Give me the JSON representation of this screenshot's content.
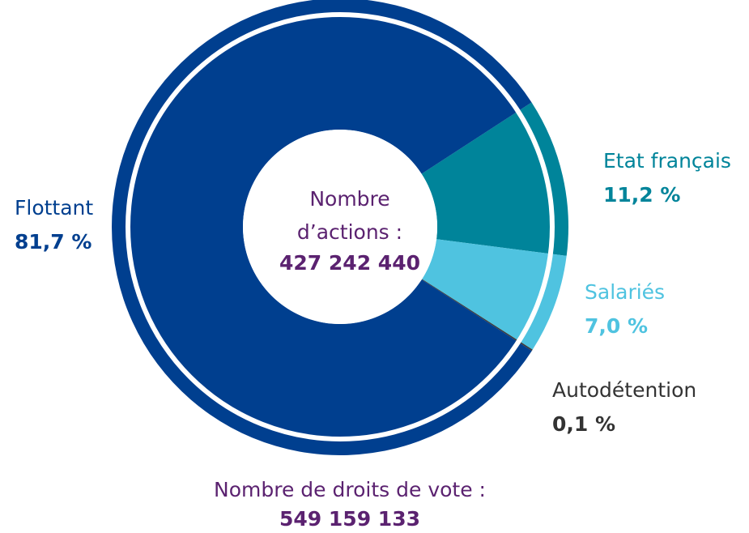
{
  "chart_data": {
    "type": "pie",
    "categories": [
      "Etat français",
      "Salariés",
      "Autodétention",
      "Flottant"
    ],
    "values": [
      11.2,
      7.0,
      0.1,
      81.7
    ],
    "value_labels": [
      "11,2 %",
      "7,0 %",
      "0,1 %",
      "81,7 %"
    ],
    "colors": [
      "#00849a",
      "#4fc3e0",
      "#3a3a3a",
      "#003f8f"
    ],
    "label_colors": [
      "#00849a",
      "#4fc3e0",
      "#333333",
      "#003f8f"
    ],
    "center_label": [
      "Nombre",
      "d’actions :"
    ],
    "center_value": "427 242 440",
    "footer_label": "Nombre de droits de vote :",
    "footer_value": "549 159 133"
  }
}
